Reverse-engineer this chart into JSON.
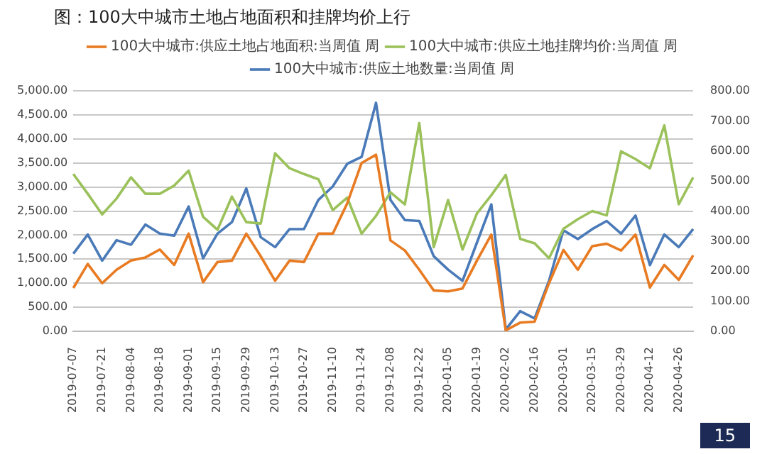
{
  "chart_data": {
    "type": "line",
    "title": "图：100大中城市土地占地面积和挂牌均价上行",
    "categories": [
      "2019-07-07",
      null,
      "2019-07-21",
      null,
      "2019-08-04",
      null,
      "2019-08-18",
      null,
      "2019-09-01",
      null,
      "2019-09-15",
      null,
      "2019-09-29",
      null,
      "2019-10-13",
      null,
      "2019-10-27",
      null,
      "2019-11-10",
      null,
      "2019-11-24",
      null,
      "2019-12-08",
      null,
      "2019-12-22",
      null,
      "2020-01-05",
      null,
      "2020-01-19",
      null,
      "2020-02-02",
      null,
      "2020-02-16",
      null,
      "2020-03-01",
      null,
      "2020-03-15",
      null,
      "2020-03-29",
      null,
      "2020-04-12",
      null,
      "2020-04-26",
      null
    ],
    "series": [
      {
        "name": "100大中城市:供应土地占地面积:当周值 周",
        "color": "#e87b22",
        "values": [
          900,
          1400,
          1000,
          1280,
          1470,
          1535,
          1700,
          1380,
          2030,
          1020,
          1440,
          1470,
          2030,
          1560,
          1050,
          1470,
          1440,
          2030,
          2030,
          2660,
          3500,
          3670,
          1890,
          1680,
          1280,
          850,
          830,
          890,
          1470,
          2010,
          20,
          180,
          200,
          1000,
          1690,
          1280,
          1770,
          1820,
          1680,
          2010,
          910,
          1380,
          1070,
          1580
        ]
      },
      {
        "name": "100大中城市:供应土地挂牌均价:当周值 周",
        "color": "#9bc15a",
        "values": [
          3270,
          2860,
          2430,
          2760,
          3200,
          2860,
          2860,
          3030,
          3340,
          2380,
          2110,
          2800,
          2270,
          2240,
          3700,
          3390,
          3270,
          3160,
          2520,
          2780,
          2030,
          2400,
          2890,
          2640,
          4330,
          1750,
          2730,
          1700,
          2450,
          2830,
          3250,
          1920,
          1830,
          1520,
          2130,
          2330,
          2500,
          2410,
          3740,
          3580,
          3390,
          4280,
          2640,
          3200
        ]
      },
      {
        "name": "100大中城市:供应土地数量:当周值 周",
        "color": "#4a7ab8",
        "axis": "y2",
        "values": [
          258,
          322,
          235,
          303,
          288,
          355,
          325,
          318,
          415,
          243,
          325,
          363,
          475,
          313,
          280,
          340,
          340,
          437,
          482,
          557,
          580,
          760,
          437,
          370,
          367,
          250,
          205,
          168,
          295,
          422,
          6,
          67,
          43,
          168,
          336,
          307,
          340,
          367,
          325,
          385,
          220,
          322,
          280,
          340
        ]
      }
    ],
    "ylim": [
      0,
      5000
    ],
    "yticks": [
      {
        "value": 0,
        "label": "0.00"
      },
      {
        "value": 500,
        "label": "500.00"
      },
      {
        "value": 1000,
        "label": "1,000.00"
      },
      {
        "value": 1500,
        "label": "1,500.00"
      },
      {
        "value": 2000,
        "label": "2,000.00"
      },
      {
        "value": 2500,
        "label": "2,500.00"
      },
      {
        "value": 3000,
        "label": "3,000.00"
      },
      {
        "value": 3500,
        "label": "3,500.00"
      },
      {
        "value": 4000,
        "label": "4,000.00"
      },
      {
        "value": 4500,
        "label": "4,500.00"
      },
      {
        "value": 5000,
        "label": "5,000.00"
      }
    ],
    "y2lim": [
      0,
      800
    ],
    "y2ticks": [
      {
        "value": 0,
        "label": "0.00"
      },
      {
        "value": 100,
        "label": "100.00"
      },
      {
        "value": 200,
        "label": "200.00"
      },
      {
        "value": 300,
        "label": "300.00"
      },
      {
        "value": 400,
        "label": "400.00"
      },
      {
        "value": 500,
        "label": "500.00"
      },
      {
        "value": 600,
        "label": "600.00"
      },
      {
        "value": 700,
        "label": "700.00"
      },
      {
        "value": 800,
        "label": "800.00"
      }
    ],
    "grid": "y",
    "legend": "top",
    "marker": "none",
    "line_style": "solid",
    "annotations": [
      "15"
    ]
  }
}
